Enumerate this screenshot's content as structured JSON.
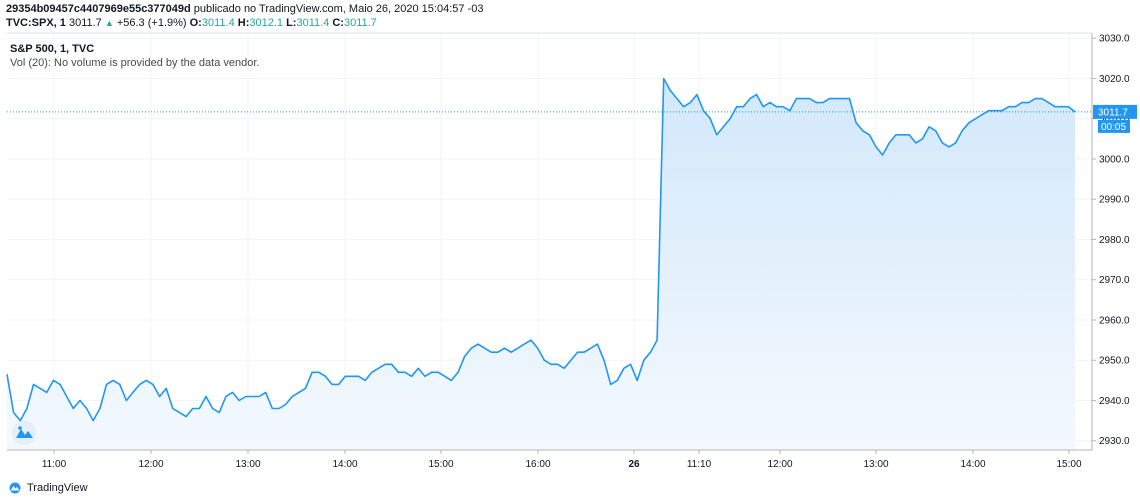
{
  "header": {
    "line1_id": "29354b09457c4407969e55c377049d",
    "line1_rest": " publicado no TradingView.com, Maio 26, 2020 15:04:57 -03",
    "symbol": "TVC:SPX, 1",
    "last": "3011.7",
    "change": "+56.3 (+1.9%)",
    "o_label": "O:",
    "o_value": "3011.4",
    "h_label": "H:",
    "h_value": "3012.1",
    "l_label": "L:",
    "l_value": "3011.4",
    "c_label": "C:",
    "c_value": "3011.7"
  },
  "pane": {
    "title": "S&P 500, 1, TVC",
    "volume_note": "Vol (20): No volume is provided by the data vendor."
  },
  "brand": {
    "name": "TradingView"
  },
  "colors": {
    "line": "#2196f3",
    "fill_top": "#d2e8fb",
    "fill_bottom": "#f4f9fe",
    "grid": "#f0f3fa",
    "axis": "#b2b5be",
    "text": "#131722"
  },
  "chart_data": {
    "type": "area",
    "title": "S&P 500, 1, TVC",
    "xlabel": "",
    "ylabel": "",
    "ylim": [
      2927.7,
      3031.3
    ],
    "yticks": [
      2930.0,
      2940.0,
      2950.0,
      2960.0,
      2970.0,
      2980.0,
      2990.0,
      3000.0,
      3010.0,
      3020.0,
      3030.0
    ],
    "x_ticks": [
      "11:00",
      "12:00",
      "13:00",
      "14:00",
      "15:00",
      "16:00",
      "26",
      "11:10",
      "12:00",
      "13:00",
      "14:00",
      "15:00"
    ],
    "price_label": "3011.7",
    "countdown_label": "00:05",
    "grid": true,
    "series": [
      {
        "values": [
          2946.5,
          2937,
          2935,
          2938,
          2944,
          2943,
          2942,
          2945,
          2944,
          2941,
          2938,
          2940,
          2938,
          2935,
          2938,
          2944,
          2945,
          2944,
          2940,
          2942,
          2944,
          2945,
          2944,
          2941,
          2943,
          2938,
          2937,
          2936,
          2938,
          2938,
          2941,
          2938,
          2937,
          2941,
          2942,
          2940,
          2941,
          2941,
          2941,
          2942,
          2938,
          2938,
          2939,
          2941,
          2942,
          2943,
          2947,
          2947,
          2946,
          2944,
          2944,
          2946,
          2946,
          2946,
          2945,
          2947,
          2948,
          2949,
          2949,
          2947,
          2947,
          2946,
          2948,
          2946,
          2947,
          2947,
          2946,
          2945,
          2947,
          2951,
          2953,
          2954,
          2953,
          2952,
          2952,
          2953,
          2952,
          2953,
          2954,
          2955,
          2953,
          2950,
          2949,
          2949,
          2948,
          2950,
          2952,
          2952,
          2953,
          2954,
          2950,
          2944,
          2945,
          2948,
          2949,
          2945,
          2950,
          2952,
          2955,
          3020,
          3017,
          3015,
          3013,
          3014,
          3016,
          3012,
          3010,
          3006,
          3008,
          3010,
          3013,
          3013,
          3015,
          3016,
          3013,
          3014,
          3013,
          3013,
          3012,
          3015,
          3015,
          3015,
          3014,
          3014,
          3015,
          3015,
          3015,
          3015,
          3009,
          3007,
          3006,
          3003,
          3001,
          3004,
          3006,
          3006,
          3006,
          3004,
          3005,
          3008,
          3007,
          3004,
          3003,
          3004,
          3007,
          3009,
          3010,
          3011,
          3012,
          3012,
          3012,
          3013,
          3013,
          3014,
          3014,
          3015,
          3015,
          3014,
          3013,
          3013,
          3013,
          3011.7
        ]
      }
    ]
  }
}
